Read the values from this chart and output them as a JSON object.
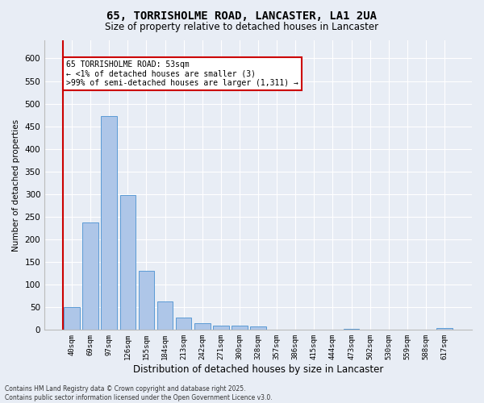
{
  "title": "65, TORRISHOLME ROAD, LANCASTER, LA1 2UA",
  "subtitle": "Size of property relative to detached houses in Lancaster",
  "xlabel": "Distribution of detached houses by size in Lancaster",
  "ylabel": "Number of detached properties",
  "bar_labels": [
    "40sqm",
    "69sqm",
    "97sqm",
    "126sqm",
    "155sqm",
    "184sqm",
    "213sqm",
    "242sqm",
    "271sqm",
    "300sqm",
    "328sqm",
    "357sqm",
    "386sqm",
    "415sqm",
    "444sqm",
    "473sqm",
    "502sqm",
    "530sqm",
    "559sqm",
    "588sqm",
    "617sqm"
  ],
  "bar_values": [
    50,
    238,
    472,
    298,
    130,
    63,
    28,
    15,
    9,
    10,
    8,
    0,
    0,
    0,
    0,
    3,
    0,
    0,
    0,
    0,
    4
  ],
  "bar_color": "#aec6e8",
  "bar_edge_color": "#5b9bd5",
  "background_color": "#e8edf5",
  "grid_color": "#ffffff",
  "annotation_box_facecolor": "#ffffff",
  "annotation_border_color": "#cc0000",
  "red_line_color": "#cc0000",
  "annotation_text_line1": "65 TORRISHOLME ROAD: 53sqm",
  "annotation_text_line2": "← <1% of detached houses are smaller (3)",
  "annotation_text_line3": ">99% of semi-detached houses are larger (1,311) →",
  "ylim": [
    0,
    640
  ],
  "yticks": [
    0,
    50,
    100,
    150,
    200,
    250,
    300,
    350,
    400,
    450,
    500,
    550,
    600
  ],
  "footer_line1": "Contains HM Land Registry data © Crown copyright and database right 2025.",
  "footer_line2": "Contains public sector information licensed under the Open Government Licence v3.0."
}
